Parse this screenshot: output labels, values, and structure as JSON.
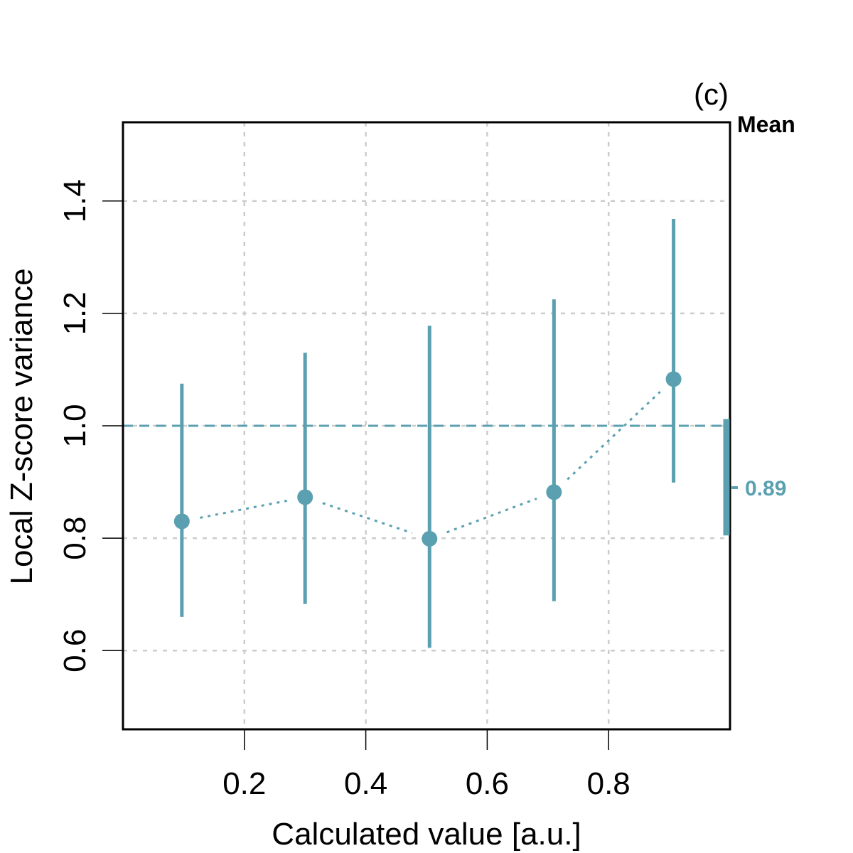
{
  "colors": {
    "series": "#5aa0b0",
    "grid": "#cccccc",
    "axis": "#000000"
  },
  "chart_data": {
    "type": "scatter",
    "panel_label": "(c)",
    "xlabel": "Calculated value [a.u.]",
    "ylabel": "Local Z-score variance",
    "xlim": [
      0.0,
      1.0
    ],
    "ylim": [
      0.46,
      1.54
    ],
    "x_ticks": [
      0.2,
      0.4,
      0.6,
      0.8
    ],
    "x_tick_labels": [
      "0.2",
      "0.4",
      "0.6",
      "0.8"
    ],
    "y_ticks": [
      0.6,
      0.8,
      1.0,
      1.2,
      1.4
    ],
    "y_tick_labels": [
      "0.6",
      "0.8",
      "1.0",
      "1.2",
      "1.4"
    ],
    "grid": true,
    "reference_line": 1.0,
    "points": [
      {
        "x": 0.097,
        "y": 0.83,
        "lower": 0.66,
        "upper": 1.075
      },
      {
        "x": 0.3,
        "y": 0.873,
        "lower": 0.683,
        "upper": 1.13
      },
      {
        "x": 0.505,
        "y": 0.799,
        "lower": 0.605,
        "upper": 1.178
      },
      {
        "x": 0.71,
        "y": 0.882,
        "lower": 0.688,
        "upper": 1.225
      },
      {
        "x": 0.907,
        "y": 1.083,
        "lower": 0.899,
        "upper": 1.368
      }
    ],
    "mean": {
      "title": "Mean",
      "value": 0.89,
      "value_label": "0.89",
      "lower": 0.805,
      "upper": 1.012
    }
  }
}
